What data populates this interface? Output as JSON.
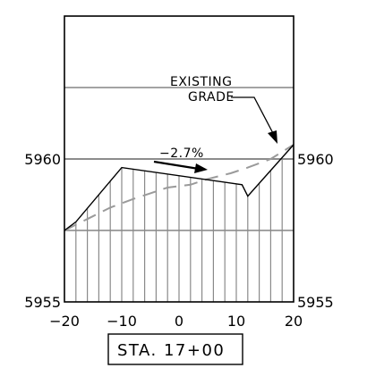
{
  "section": {
    "station_label": "STA. 17+00",
    "note_existing_line1": "EXISTING",
    "note_existing_line2": "GRADE",
    "slope_label": "−2.7%"
  },
  "chart_data": {
    "type": "line",
    "title": "",
    "xlabel": "",
    "ylabel": "",
    "xlim": [
      -20,
      20
    ],
    "ylim": [
      5955,
      5965
    ],
    "x_ticks": [
      "−20",
      "−10",
      "0",
      "10",
      "20"
    ],
    "x_tick_values": [
      -20,
      -10,
      0,
      10,
      20
    ],
    "y_ticks_left": [
      "5955",
      "5960"
    ],
    "y_ticks_right": [
      "5955",
      "5960"
    ],
    "y_tick_values": [
      5955,
      5960
    ],
    "series": [
      {
        "style": "solid",
        "color": "#000000",
        "x": [
          -20,
          -18,
          -10,
          11,
          12,
          20
        ],
        "y": [
          5957.5,
          5957.8,
          5959.7,
          5959.1,
          5958.7,
          5960.5
        ]
      },
      {
        "style": "dashed",
        "color": "#9a9a9a",
        "x": [
          -20,
          -16,
          -12,
          -8,
          -5,
          -2,
          2,
          5,
          9,
          12,
          16,
          20
        ],
        "y": [
          5957.5,
          5957.9,
          5958.3,
          5958.6,
          5958.8,
          5959.0,
          5959.1,
          5959.3,
          5959.5,
          5959.7,
          5960.0,
          5960.5
        ]
      }
    ],
    "reference_lines_y": [
      5957.5,
      5960,
      5962.5
    ],
    "hatch_x": [
      -18,
      -16,
      -14,
      -12,
      -10,
      -8,
      -6,
      -4,
      -2,
      0,
      2,
      4,
      6,
      8,
      10,
      12,
      14,
      16,
      18
    ],
    "slope_percent": -2.7
  }
}
